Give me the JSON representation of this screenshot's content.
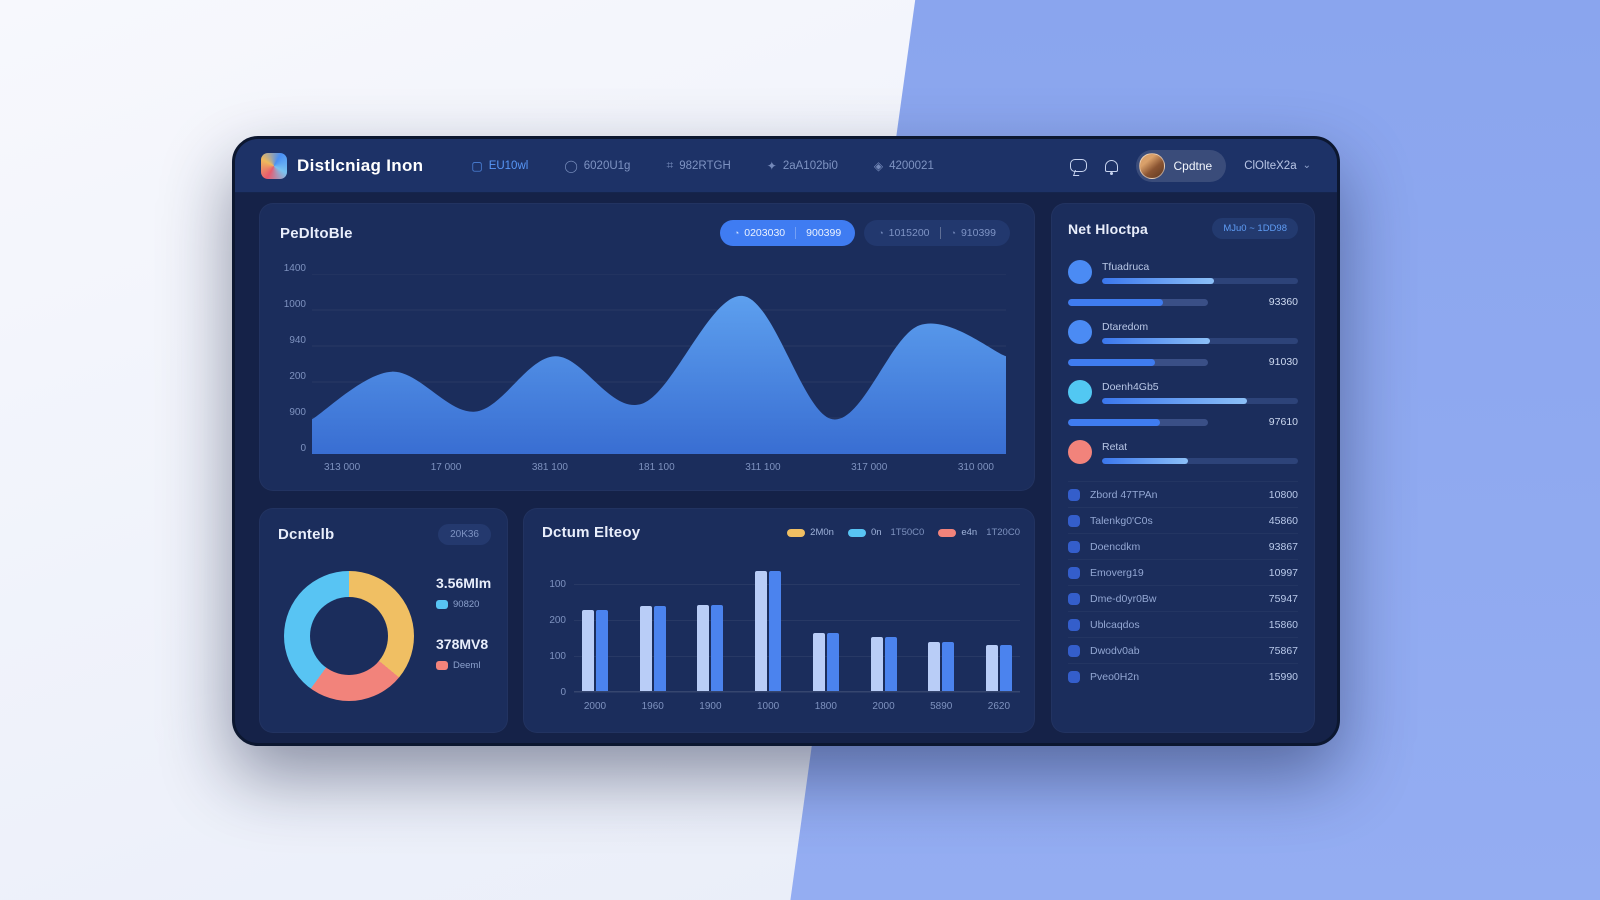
{
  "colors": {
    "accent": "#4285f4",
    "panel": "#1b2d5c",
    "yellow": "#f0bf63",
    "cyan": "#58c4f3",
    "salmon": "#f2837b",
    "bar_light": "#b9cdf7",
    "bar_dark": "#4b83ee"
  },
  "navbar": {
    "brand": "Distlcniag Inon",
    "items": [
      {
        "label": "EU10wl",
        "icon": "dashboard-icon",
        "active": true
      },
      {
        "label": "6020U1g",
        "icon": "circle-icon",
        "active": false
      },
      {
        "label": "982RTGH",
        "icon": "grid-icon",
        "active": false
      },
      {
        "label": "2aA102bi0",
        "icon": "chat-icon",
        "active": false
      },
      {
        "label": "4200021",
        "icon": "badge-icon",
        "active": false
      }
    ],
    "profile_name": "Cpdtne",
    "org_label": "ClOlteX2a"
  },
  "overview": {
    "pill_active": {
      "seg1": "0203030",
      "seg2": "900399"
    },
    "pill_inactive": {
      "seg1": "1015200",
      "seg2": "910399"
    }
  },
  "donut_panel": {
    "title": "Dcntelb",
    "badge": "20K36",
    "legend": [
      {
        "big": "3.56Mlm",
        "small": "90820",
        "swatch": "#58c4f3"
      },
      {
        "big": "378MV8",
        "small": "Deeml",
        "swatch": "#f2837b"
      }
    ]
  },
  "bars_panel": {
    "legend": [
      {
        "swatch": "#f0bf63",
        "label": "2M0n",
        "value": ""
      },
      {
        "swatch": "#58c4f3",
        "label": "0n",
        "value": "1T50C0"
      },
      {
        "swatch": "#f2837b",
        "label": "e4n",
        "value": "1T20C0"
      }
    ]
  },
  "right_panel": {
    "title": "Net Hloctpa",
    "badge": "MJu0 ~ 1DD98",
    "members": [
      {
        "name": "Tfuadruca",
        "color": "#4b8bf4",
        "progress": 57,
        "sub_progress": 68,
        "sub_value": "93360"
      },
      {
        "name": "Dtaredom",
        "color": "#4b8bf4",
        "progress": 55,
        "sub_progress": 62,
        "sub_value": "91030"
      },
      {
        "name": "Doenh4Gb5",
        "color": "#52c8f2",
        "progress": 74,
        "sub_progress": 66,
        "sub_value": "97610"
      },
      {
        "name": "Retat",
        "color": "#f2837b",
        "progress": 44,
        "sub_progress": null,
        "sub_value": null
      }
    ],
    "items": [
      {
        "label": "Zbord 47TPAn",
        "value": "10800"
      },
      {
        "label": "Talenkg0'C0s",
        "value": "45860"
      },
      {
        "label": "Doencdkm",
        "value": "93867"
      },
      {
        "label": "Emoverg19",
        "value": "10997"
      },
      {
        "label": "Dme-d0yr0Bw",
        "value": "75947"
      },
      {
        "label": "Ublcaqdos",
        "value": "15860"
      },
      {
        "label": "Dwodv0ab",
        "value": "75867"
      },
      {
        "label": "Pveo0H2n",
        "value": "15990"
      }
    ]
  },
  "chart_data": [
    {
      "type": "area",
      "title": "PeDltoBle",
      "yticks": [
        "1400",
        "1000",
        "940",
        "200",
        "900",
        "0"
      ],
      "x_labels": [
        "313 000",
        "17 000",
        "381 100",
        "181 100",
        "311 100",
        "317 000",
        "310 000"
      ],
      "series": [
        {
          "name": "traffic",
          "x": [
            0,
            0.115,
            0.235,
            0.35,
            0.475,
            0.62,
            0.75,
            0.875,
            1
          ],
          "values": [
            270,
            640,
            330,
            760,
            390,
            1230,
            270,
            1000,
            760
          ]
        }
      ],
      "ylim": [
        0,
        1400
      ],
      "grid": true,
      "fill_top": "#5fa3f3",
      "fill_bottom": "#3a70d6"
    },
    {
      "type": "pie",
      "title": "Dcntelb",
      "donut": true,
      "slices": [
        {
          "color": "#f0bf63",
          "value": 36
        },
        {
          "color": "#f2837b",
          "value": 24
        },
        {
          "color": "#58c4f3",
          "value": 40
        }
      ]
    },
    {
      "type": "bar",
      "title": "Dctum Elteoy",
      "categories": [
        "2000",
        "1960",
        "1900",
        "1000",
        "1800",
        "2000",
        "5890",
        "2620"
      ],
      "values": [
        265,
        275,
        280,
        390,
        190,
        175,
        160,
        150
      ],
      "ylim": [
        0,
        400
      ],
      "yticks": [
        "100",
        "200",
        "100",
        "0"
      ],
      "colors": [
        "#b9cdf7",
        "#4b83ee"
      ]
    }
  ]
}
